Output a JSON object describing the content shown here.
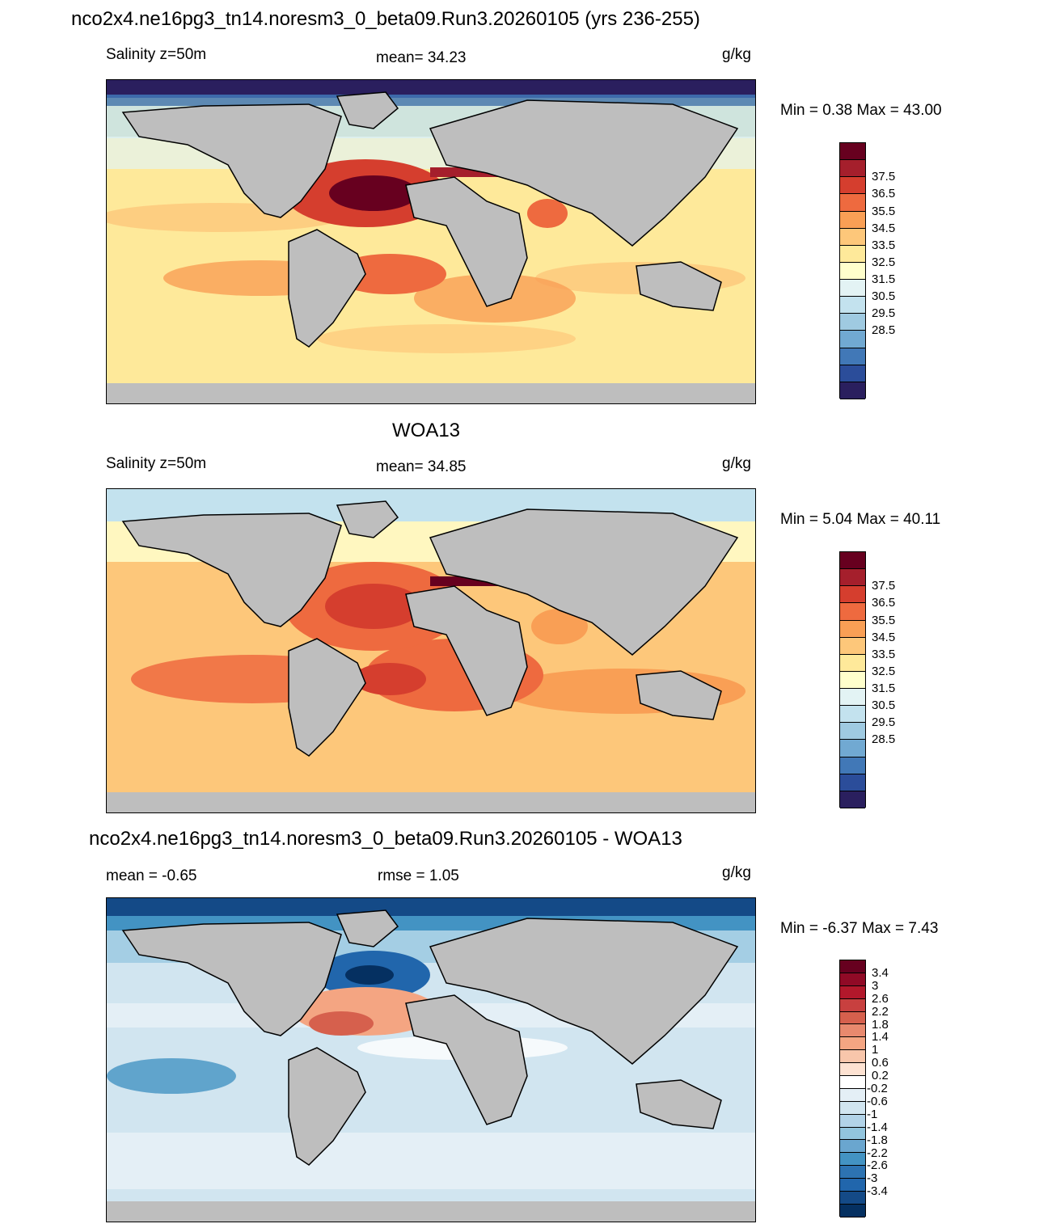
{
  "panel1": {
    "title": "nco2x4.ne16pg3_tn14.noresm3_0_beta09.Run3.20260105 (yrs 236-255)",
    "left": "Salinity z=50m",
    "center": "mean=  34.23",
    "right": "g/kg",
    "minmax": "Min =   0.38 Max =  43.00",
    "colorbar_labels": [
      "37.5",
      "36.5",
      "35.5",
      "34.5",
      "33.5",
      "32.5",
      "31.5",
      "30.5",
      "29.5",
      "28.5"
    ]
  },
  "panel2": {
    "title": "WOA13",
    "left": "Salinity z=50m",
    "center": "mean=  34.85",
    "right": "g/kg",
    "minmax": "Min =   5.04 Max =  40.11",
    "colorbar_labels": [
      "37.5",
      "36.5",
      "35.5",
      "34.5",
      "33.5",
      "32.5",
      "31.5",
      "30.5",
      "29.5",
      "28.5"
    ]
  },
  "panel3": {
    "title": "nco2x4.ne16pg3_tn14.noresm3_0_beta09.Run3.20260105 - WOA13",
    "left": "mean =  -0.65",
    "center": "rmse =   1.05",
    "right": "g/kg",
    "minmax": "Min =  -6.37 Max =   7.43",
    "colorbar_labels": [
      "3.4",
      "3",
      "2.6",
      "2.2",
      "1.8",
      "1.4",
      "1",
      "0.6",
      "0.2",
      "-0.2",
      "-0.6",
      "-1",
      "-1.4",
      "-1.8",
      "-2.2",
      "-2.6",
      "-3",
      "-3.4"
    ]
  },
  "colors": {
    "land": "#bebebe",
    "abs_scale": [
      "#67001f",
      "#a51f2c",
      "#d53e2e",
      "#ee6a3f",
      "#f99f55",
      "#fdc77a",
      "#fee99a",
      "#ffffcc",
      "#e3f3f4",
      "#c3e2ee",
      "#9fcae1",
      "#71a9d2",
      "#4178b7",
      "#2b4d9a",
      "#2a1f5e"
    ],
    "diff_scale": [
      "#67001f",
      "#900a26",
      "#b2182b",
      "#c8403f",
      "#d6604d",
      "#e8896e",
      "#f4a582",
      "#f8c6ab",
      "#fde2d2",
      "#ffffff",
      "#e4eff6",
      "#d1e5f0",
      "#b2d3e8",
      "#92c5de",
      "#6aa6cf",
      "#4393c3",
      "#2d73b2",
      "#2166ac",
      "#144a87",
      "#053061"
    ]
  }
}
